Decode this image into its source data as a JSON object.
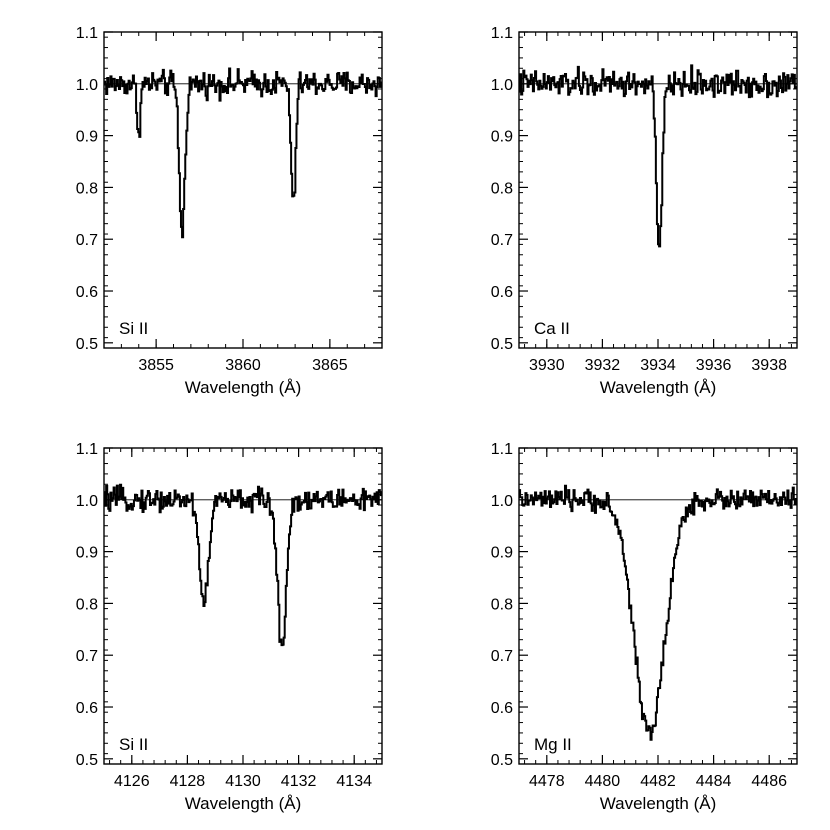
{
  "chart_data": [
    {
      "type": "line",
      "annotation": "Si II",
      "xlabel": "Wavelength (Å)",
      "ylabel": "",
      "xlim": [
        3852,
        3868
      ],
      "ylim": [
        0.49,
        1.1
      ],
      "xticks": [
        3855,
        3860,
        3865
      ],
      "yticks": [
        0.5,
        0.6,
        0.7,
        0.8,
        0.9,
        1.0,
        1.1
      ],
      "ytick_labels": [
        "0.5",
        "0.6",
        "0.7",
        "0.8",
        "0.9",
        "1.0",
        "1.1"
      ],
      "continuum": 1.0,
      "noise": 0.012,
      "lines": [
        {
          "center": 3854.0,
          "depth": 0.09,
          "width": 0.1
        },
        {
          "center": 3856.5,
          "depth": 0.29,
          "width": 0.16
        },
        {
          "center": 3862.9,
          "depth": 0.24,
          "width": 0.13
        }
      ],
      "series": [
        {
          "style": "histogram"
        }
      ]
    },
    {
      "type": "line",
      "annotation": "Ca II",
      "xlabel": "Wavelength (Å)",
      "ylabel": "",
      "xlim": [
        3929,
        3939
      ],
      "ylim": [
        0.49,
        1.1
      ],
      "xticks": [
        3930,
        3932,
        3934,
        3936,
        3938
      ],
      "yticks": [
        0.5,
        0.6,
        0.7,
        0.8,
        0.9,
        1.0,
        1.1
      ],
      "ytick_labels": [
        "0.5",
        "0.6",
        "0.7",
        "0.8",
        "0.9",
        "1.0",
        "1.1"
      ],
      "continuum": 1.0,
      "noise": 0.013,
      "lines": [
        {
          "center": 3934.05,
          "depth": 0.33,
          "width": 0.1
        }
      ],
      "series": [
        {
          "style": "histogram"
        }
      ]
    },
    {
      "type": "line",
      "annotation": "Si II",
      "xlabel": "Wavelength (Å)",
      "ylabel": "",
      "xlim": [
        4125,
        4135
      ],
      "ylim": [
        0.49,
        1.1
      ],
      "xticks": [
        4126,
        4128,
        4130,
        4132,
        4134
      ],
      "yticks": [
        0.5,
        0.6,
        0.7,
        0.8,
        0.9,
        1.0,
        1.1
      ],
      "ytick_labels": [
        "0.5",
        "0.6",
        "0.7",
        "0.8",
        "0.9",
        "1.0",
        "1.1"
      ],
      "continuum": 1.0,
      "noise": 0.011,
      "lines": [
        {
          "center": 4128.6,
          "depth": 0.2,
          "width": 0.16
        },
        {
          "center": 4131.4,
          "depth": 0.28,
          "width": 0.16
        }
      ],
      "series": [
        {
          "style": "histogram"
        }
      ]
    },
    {
      "type": "line",
      "annotation": "Mg II",
      "xlabel": "Wavelength (Å)",
      "ylabel": "",
      "xlim": [
        4477,
        4487
      ],
      "ylim": [
        0.49,
        1.1
      ],
      "xticks": [
        4478,
        4480,
        4482,
        4484,
        4486
      ],
      "yticks": [
        0.5,
        0.6,
        0.7,
        0.8,
        0.9,
        1.0,
        1.1
      ],
      "ytick_labels": [
        "0.5",
        "0.6",
        "0.7",
        "0.8",
        "0.9",
        "1.0",
        "1.1"
      ],
      "continuum": 1.0,
      "noise": 0.01,
      "lines": [
        {
          "center": 4481.7,
          "depth": 0.45,
          "width": 0.55
        }
      ],
      "series": [
        {
          "style": "histogram"
        }
      ]
    }
  ]
}
